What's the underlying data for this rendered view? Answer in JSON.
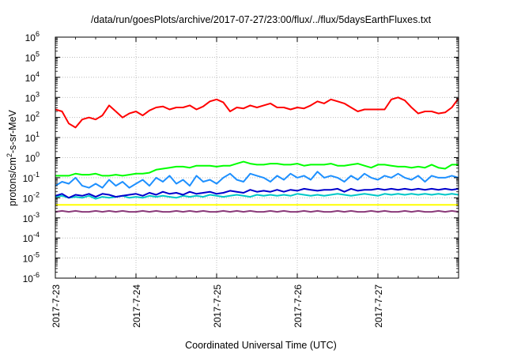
{
  "chart_data": {
    "type": "line",
    "title": "/data/run/goesPlots/archive/2017-07-27/23:00/flux/../flux/5daysEarthFluxes.txt",
    "xlabel": "Coordinated Universal Time (UTC)",
    "ylabel": {
      "pre": "protons/cm",
      "sup": "2",
      "post": "-s-sr-MeV"
    },
    "yscale": "log",
    "ylim_exp": [
      -6,
      6
    ],
    "ytick_exponents": [
      "-6",
      "-5",
      "-4",
      "-3",
      "-2",
      "-1",
      "0",
      "1",
      "2",
      "3",
      "4",
      "5",
      "6"
    ],
    "xlim": [
      "2017-07-23",
      "2017-07-28"
    ],
    "xticks": [
      {
        "date": "2017-07-23",
        "label": "2017-7-23"
      },
      {
        "date": "2017-07-24",
        "label": "2017-7-24"
      },
      {
        "date": "2017-07-25",
        "label": "2017-7-25"
      },
      {
        "date": "2017-07-26",
        "label": "2017-7-26"
      },
      {
        "date": "2017-07-27",
        "label": "2017-7-27"
      }
    ],
    "grid": true,
    "legend": "none",
    "series": [
      {
        "color": "#ff0000",
        "log10_values": [
          2.4,
          2.3,
          1.7,
          1.5,
          1.9,
          2.0,
          1.9,
          2.1,
          2.6,
          2.3,
          2.0,
          2.2,
          2.3,
          2.1,
          2.35,
          2.5,
          2.55,
          2.4,
          2.5,
          2.5,
          2.6,
          2.4,
          2.55,
          2.8,
          2.9,
          2.75,
          2.3,
          2.5,
          2.45,
          2.6,
          2.5,
          2.6,
          2.7,
          2.5,
          2.5,
          2.4,
          2.5,
          2.45,
          2.6,
          2.8,
          2.7,
          2.9,
          2.8,
          2.7,
          2.5,
          2.3,
          2.4,
          2.4,
          2.4,
          2.4,
          2.9,
          3.0,
          2.85,
          2.5,
          2.2,
          2.3,
          2.3,
          2.2,
          2.25,
          2.5,
          2.95
        ]
      },
      {
        "color": "#00ff00",
        "log10_values": [
          -0.9,
          -0.9,
          -0.9,
          -0.8,
          -0.85,
          -0.85,
          -0.8,
          -0.9,
          -0.9,
          -0.85,
          -0.9,
          -0.85,
          -0.8,
          -0.8,
          -0.75,
          -0.6,
          -0.55,
          -0.5,
          -0.45,
          -0.45,
          -0.5,
          -0.4,
          -0.4,
          -0.4,
          -0.45,
          -0.4,
          -0.4,
          -0.3,
          -0.2,
          -0.3,
          -0.35,
          -0.35,
          -0.3,
          -0.3,
          -0.35,
          -0.35,
          -0.3,
          -0.4,
          -0.35,
          -0.35,
          -0.35,
          -0.3,
          -0.4,
          -0.4,
          -0.35,
          -0.3,
          -0.4,
          -0.5,
          -0.35,
          -0.35,
          -0.4,
          -0.45,
          -0.45,
          -0.5,
          -0.45,
          -0.5,
          -0.35,
          -0.5,
          -0.55,
          -0.35,
          -0.35
        ]
      },
      {
        "color": "#1e90ff",
        "log10_values": [
          -1.4,
          -1.2,
          -1.3,
          -1.0,
          -1.4,
          -1.5,
          -1.3,
          -1.5,
          -1.1,
          -1.4,
          -1.2,
          -1.5,
          -1.3,
          -1.1,
          -1.4,
          -1.0,
          -1.2,
          -0.9,
          -1.3,
          -1.1,
          -1.4,
          -0.9,
          -1.2,
          -1.1,
          -1.3,
          -1.0,
          -0.8,
          -1.1,
          -1.2,
          -0.8,
          -0.9,
          -1.0,
          -1.2,
          -0.9,
          -1.1,
          -0.8,
          -1.0,
          -0.9,
          -1.1,
          -0.7,
          -1.0,
          -0.9,
          -1.0,
          -1.2,
          -0.9,
          -1.1,
          -0.8,
          -1.0,
          -1.1,
          -0.9,
          -1.0,
          -0.8,
          -1.0,
          -1.1,
          -0.9,
          -1.2,
          -0.9,
          -1.0,
          -1.0,
          -0.9,
          -1.0
        ]
      },
      {
        "color": "#0000cc",
        "log10_values": [
          -1.9,
          -1.8,
          -2.0,
          -1.85,
          -1.9,
          -1.8,
          -1.95,
          -1.8,
          -1.85,
          -1.95,
          -1.9,
          -1.85,
          -1.8,
          -1.9,
          -1.75,
          -1.85,
          -1.7,
          -1.8,
          -1.75,
          -1.85,
          -1.7,
          -1.8,
          -1.75,
          -1.7,
          -1.8,
          -1.75,
          -1.65,
          -1.7,
          -1.75,
          -1.6,
          -1.7,
          -1.65,
          -1.7,
          -1.6,
          -1.7,
          -1.6,
          -1.65,
          -1.55,
          -1.6,
          -1.65,
          -1.6,
          -1.6,
          -1.55,
          -1.7,
          -1.55,
          -1.65,
          -1.6,
          -1.6,
          -1.55,
          -1.6,
          -1.55,
          -1.6,
          -1.55,
          -1.6,
          -1.55,
          -1.6,
          -1.55,
          -1.6,
          -1.55,
          -1.6,
          -1.55
        ]
      },
      {
        "color": "#00c8c8",
        "log10_values": [
          -1.95,
          -1.9,
          -2.0,
          -1.95,
          -2.0,
          -1.9,
          -2.05,
          -1.95,
          -2.0,
          -1.95,
          -1.9,
          -2.0,
          -1.95,
          -2.0,
          -1.9,
          -1.95,
          -1.9,
          -1.95,
          -2.0,
          -1.9,
          -1.95,
          -1.9,
          -1.95,
          -1.85,
          -1.9,
          -1.95,
          -1.9,
          -1.85,
          -1.9,
          -1.95,
          -1.85,
          -1.9,
          -1.85,
          -1.9,
          -1.85,
          -1.9,
          -1.8,
          -1.85,
          -1.9,
          -1.85,
          -1.9,
          -1.85,
          -1.8,
          -1.85,
          -1.9,
          -1.85,
          -1.8,
          -1.85,
          -1.9,
          -1.8,
          -1.85,
          -1.8,
          -1.85,
          -1.8,
          -1.85,
          -1.8,
          -1.85,
          -1.8,
          -1.85,
          -1.8,
          -1.85
        ]
      },
      {
        "color": "#ffff00",
        "log10_values": [
          -2.35,
          -2.35,
          -2.35,
          -2.35,
          -2.35,
          -2.35,
          -2.35,
          -2.35,
          -2.35,
          -2.35,
          -2.35,
          -2.35,
          -2.35,
          -2.35,
          -2.35,
          -2.35,
          -2.35,
          -2.35,
          -2.35,
          -2.35,
          -2.35,
          -2.35,
          -2.35,
          -2.35,
          -2.35,
          -2.35,
          -2.35,
          -2.35,
          -2.35,
          -2.35,
          -2.35,
          -2.35,
          -2.35,
          -2.35,
          -2.35,
          -2.35,
          -2.35,
          -2.35,
          -2.35,
          -2.35,
          -2.35,
          -2.35,
          -2.35,
          -2.35,
          -2.35,
          -2.35,
          -2.35,
          -2.35,
          -2.35,
          -2.35,
          -2.35,
          -2.35,
          -2.35,
          -2.35,
          -2.35,
          -2.35,
          -2.35,
          -2.35,
          -2.35,
          -2.35,
          -2.35
        ]
      },
      {
        "color": "#8b3a7a",
        "log10_values": [
          -2.7,
          -2.65,
          -2.7,
          -2.65,
          -2.7,
          -2.7,
          -2.65,
          -2.7,
          -2.65,
          -2.7,
          -2.65,
          -2.7,
          -2.7,
          -2.65,
          -2.7,
          -2.65,
          -2.7,
          -2.7,
          -2.65,
          -2.7,
          -2.65,
          -2.7,
          -2.65,
          -2.7,
          -2.7,
          -2.65,
          -2.7,
          -2.65,
          -2.7,
          -2.65,
          -2.7,
          -2.7,
          -2.65,
          -2.7,
          -2.65,
          -2.7,
          -2.7,
          -2.65,
          -2.7,
          -2.65,
          -2.7,
          -2.7,
          -2.65,
          -2.7,
          -2.65,
          -2.7,
          -2.7,
          -2.65,
          -2.7,
          -2.65,
          -2.7,
          -2.7,
          -2.65,
          -2.7,
          -2.65,
          -2.7,
          -2.7,
          -2.65,
          -2.7,
          -2.65,
          -2.7
        ]
      }
    ]
  }
}
